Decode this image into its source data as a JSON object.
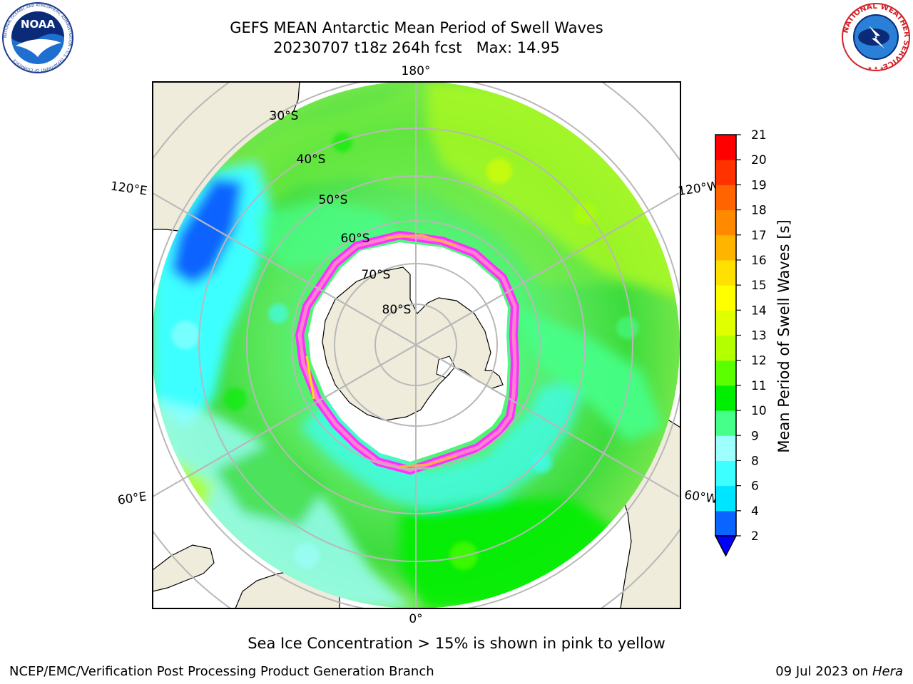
{
  "title": {
    "line1": "GEFS MEAN Antarctic Mean Period of Swell Waves",
    "line2": "20230707 t18z 264h fcst   Max: 14.95"
  },
  "logos": {
    "left": {
      "name": "noaa-logo",
      "text": "NOAA",
      "ring_text": "NATIONAL OCEANIC AND ATMOSPHERIC ADMINISTRATION • U.S. DEPARTMENT OF COMMERCE"
    },
    "right": {
      "name": "nws-logo",
      "ring_text": "NATIONAL WEATHER SERVICE"
    }
  },
  "map": {
    "projection": "south-polar-stereographic",
    "longitude_labels": [
      "180°",
      "120°E",
      "120°W",
      "60°E",
      "60°W",
      "0°"
    ],
    "latitude_labels": [
      "30°S",
      "40°S",
      "50°S",
      "60°S",
      "70°S",
      "80°S"
    ],
    "colors": {
      "land": "#efecdc",
      "grid": "#b8b8b8",
      "ice": [
        "#ff30ff",
        "#ff80d0",
        "#ffb040",
        "#ffe000"
      ]
    }
  },
  "colorbar": {
    "label": "Mean Period of Swell Waves [s]",
    "ticks": [
      "2",
      "4",
      "6",
      "8",
      "9",
      "10",
      "11",
      "12",
      "13",
      "14",
      "15",
      "16",
      "17",
      "18",
      "19",
      "20",
      "21"
    ],
    "colors": [
      "#0a64ff",
      "#00e5ff",
      "#3dffff",
      "#9effff",
      "#46ff8a",
      "#00ee00",
      "#5cff00",
      "#b4ff00",
      "#e0ff00",
      "#ffff00",
      "#ffe000",
      "#ffb400",
      "#ff8a00",
      "#ff6400",
      "#ff3200",
      "#ff0000"
    ],
    "under_color": "#0000ff"
  },
  "note": "Sea Ice Concentration > 15% is shown in pink to yellow",
  "footer": {
    "left": "NCEP/EMC/Verification Post Processing Product Generation Branch",
    "right_prefix": "09 Jul 2023 on ",
    "right_host": "Hera"
  }
}
